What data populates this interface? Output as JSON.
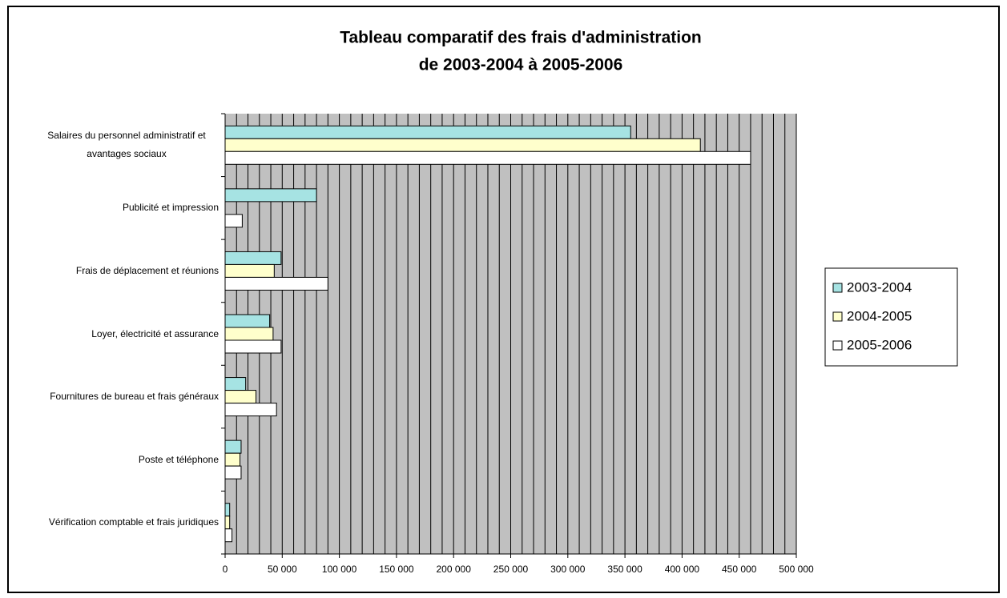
{
  "chart_data": {
    "type": "hbar",
    "title": [
      "Tableau comparatif des frais d'administration",
      "de 2003-2004 à 2005-2006"
    ],
    "categories": [
      "Salaires du personnel administratif et avantages sociaux",
      "Publicité et impression",
      "Frais de déplacement et réunions",
      "Loyer, électricité et assurance",
      "Fournitures de bureau et frais généraux",
      "Poste et téléphone",
      "Vérification comptable et frais juridiques"
    ],
    "series": [
      {
        "name": "2003-2004",
        "color": "#a6e3e3",
        "values": [
          355000,
          80000,
          49000,
          39000,
          18000,
          14000,
          4000
        ]
      },
      {
        "name": "2004-2005",
        "color": "#ffffcc",
        "values": [
          416000,
          null,
          43000,
          42000,
          27000,
          13000,
          4000
        ]
      },
      {
        "name": "2005-2006",
        "color": "#ffffff",
        "values": [
          460000,
          15000,
          90000,
          49000,
          45000,
          14000,
          6000
        ]
      }
    ],
    "xlim": [
      0,
      500000
    ],
    "xticks": [
      0,
      {
        "value": 50000,
        "label": "50 000"
      },
      {
        "value": 100000,
        "label": "100 000"
      },
      {
        "value": 150000,
        "label": "150 000"
      },
      {
        "value": 200000,
        "label": "200 000"
      },
      {
        "value": 250000,
        "label": "250 000"
      },
      {
        "value": 300000,
        "label": "300 000"
      },
      {
        "value": 350000,
        "label": "350 000"
      },
      {
        "value": 400000,
        "label": "400 000"
      },
      {
        "value": 450000,
        "label": "450 000"
      },
      {
        "value": 500000,
        "label": "500 000"
      }
    ],
    "grid_step": 10000,
    "grid": true,
    "plot_background": "#c0c0c0",
    "legend": "right"
  }
}
